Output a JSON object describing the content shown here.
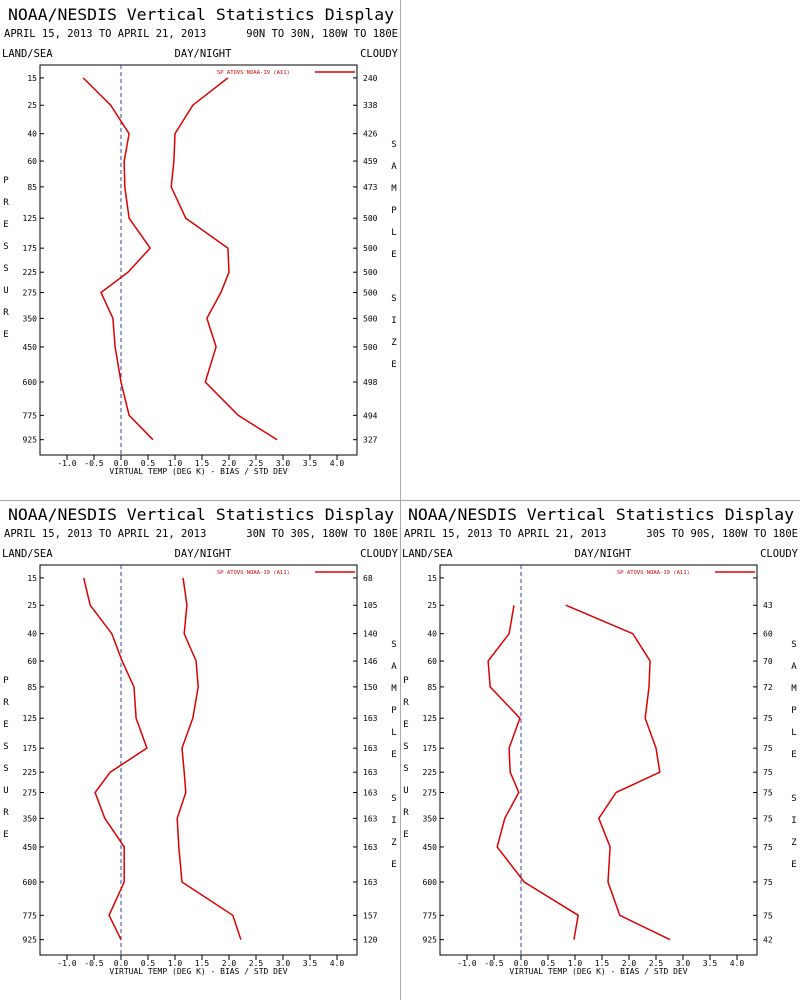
{
  "chart_data": [
    {
      "type": "line",
      "title": "NOAA/NESDIS Vertical Statistics Display",
      "dates": "APRIL 15, 2013 TO APRIL 21, 2013",
      "region": "90N TO 30N, 180W TO 180E",
      "land_sea": "LAND/SEA",
      "day_night": "DAY/NIGHT",
      "cloudy": "CLOUDY",
      "y_label": "PRESSURE",
      "y2_label": "SAMPLE SIZE",
      "x_label": "VIRTUAL TEMP (DEG K) - BIAS / STD DEV",
      "levels": [
        15,
        25,
        40,
        60,
        85,
        125,
        175,
        225,
        275,
        350,
        450,
        600,
        775,
        925
      ],
      "sample_size": [
        240,
        338,
        426,
        459,
        473,
        500,
        500,
        500,
        500,
        500,
        500,
        498,
        494,
        327
      ],
      "series": [
        {
          "name": "SP ATOVS NOAA-19 (A11)",
          "color": "#dd0000",
          "bias": [
            -0.7,
            -0.19,
            0.15,
            0.06,
            0.07,
            0.15,
            0.54,
            0.13,
            -0.37,
            -0.15,
            -0.11,
            0.0,
            0.15,
            0.59
          ],
          "std_dev": [
            1.98,
            1.33,
            1.0,
            0.98,
            0.93,
            1.2,
            1.98,
            2.0,
            1.85,
            1.59,
            1.76,
            1.56,
            2.17,
            2.89
          ]
        }
      ],
      "xlim": [
        -1.5,
        4.37
      ],
      "ylim": [
        11.5,
        1030
      ],
      "xticks": [
        {
          "value": -1,
          "label": "-1.0"
        },
        -0.5,
        {
          "value": 0,
          "label": "0.0"
        },
        0.5,
        {
          "value": 1,
          "label": "1.0"
        },
        1.5,
        {
          "value": 2,
          "label": "2.0"
        },
        2.5,
        {
          "value": 3,
          "label": "3.0"
        },
        3.5,
        {
          "value": 4,
          "label": "4.0"
        }
      ]
    },
    {
      "type": "line",
      "title": "NOAA/NESDIS Vertical Statistics Display",
      "dates": "APRIL 15, 2013 TO APRIL 21, 2013",
      "region": "30N TO 30S, 180W TO 180E",
      "land_sea": "LAND/SEA",
      "day_night": "DAY/NIGHT",
      "cloudy": "CLOUDY",
      "y_label": "PRESSURE",
      "y2_label": "SAMPLE SIZE",
      "x_label": "VIRTUAL TEMP (DEG K) - BIAS / STD DEV",
      "levels": [
        15,
        25,
        40,
        60,
        85,
        125,
        175,
        225,
        275,
        350,
        450,
        600,
        775,
        925
      ],
      "sample_size": [
        68,
        105,
        140,
        146,
        150,
        163,
        163,
        163,
        163,
        163,
        163,
        163,
        157,
        120
      ],
      "series": [
        {
          "name": "SP ATOVS NOAA-19 (A11)",
          "color": "#dd0000",
          "bias": [
            -0.69,
            -0.57,
            -0.17,
            0.02,
            0.24,
            0.28,
            0.48,
            -0.2,
            -0.48,
            -0.3,
            0.06,
            0.06,
            -0.22,
            0.0
          ],
          "std_dev": [
            1.15,
            1.22,
            1.17,
            1.39,
            1.43,
            1.33,
            1.13,
            1.17,
            1.2,
            1.04,
            1.07,
            1.13,
            2.07,
            2.22
          ]
        }
      ],
      "xlim": [
        -1.5,
        4.37
      ],
      "ylim": [
        11.5,
        1030
      ],
      "xticks": [
        {
          "value": -1,
          "label": "-1.0"
        },
        -0.5,
        {
          "value": 0,
          "label": "0.0"
        },
        0.5,
        {
          "value": 1,
          "label": "1.0"
        },
        1.5,
        {
          "value": 2,
          "label": "2.0"
        },
        2.5,
        {
          "value": 3,
          "label": "3.0"
        },
        3.5,
        {
          "value": 4,
          "label": "4.0"
        }
      ]
    },
    {
      "type": "line",
      "title": "NOAA/NESDIS Vertical Statistics Display",
      "dates": "APRIL 15, 2013 TO APRIL 21, 2013",
      "region": "30S TO 90S, 180W TO 180E",
      "land_sea": "LAND/SEA",
      "day_night": "DAY/NIGHT",
      "cloudy": "CLOUDY",
      "y_label": "PRESSURE",
      "y2_label": "SAMPLE SIZE",
      "x_label": "VIRTUAL TEMP (DEG K) - BIAS / STD DEV",
      "levels": [
        15,
        25,
        40,
        60,
        85,
        125,
        175,
        225,
        275,
        350,
        450,
        600,
        775,
        925
      ],
      "sample_size": [
        null,
        43,
        60,
        70,
        72,
        75,
        75,
        75,
        75,
        75,
        75,
        75,
        75,
        42
      ],
      "series": [
        {
          "name": "SP ATOVS NOAA-19 (A11)",
          "color": "#dd0000",
          "bias": [
            null,
            -0.13,
            -0.22,
            -0.61,
            -0.57,
            -0.02,
            -0.22,
            -0.2,
            -0.04,
            -0.3,
            -0.44,
            0.06,
            1.06,
            0.98
          ],
          "std_dev": [
            null,
            0.83,
            2.07,
            2.39,
            2.37,
            2.3,
            2.5,
            2.57,
            1.76,
            1.44,
            1.65,
            1.61,
            1.83,
            2.76
          ]
        }
      ],
      "xlim": [
        -1.5,
        4.37
      ],
      "ylim": [
        11.5,
        1030
      ],
      "xticks": [
        {
          "value": -1,
          "label": "-1.0"
        },
        -0.5,
        {
          "value": 0,
          "label": "0.0"
        },
        0.5,
        {
          "value": 1,
          "label": "1.0"
        },
        1.5,
        {
          "value": 2,
          "label": "2.0"
        },
        2.5,
        {
          "value": 3,
          "label": "3.0"
        },
        3.5,
        {
          "value": 4,
          "label": "4.0"
        }
      ]
    }
  ]
}
